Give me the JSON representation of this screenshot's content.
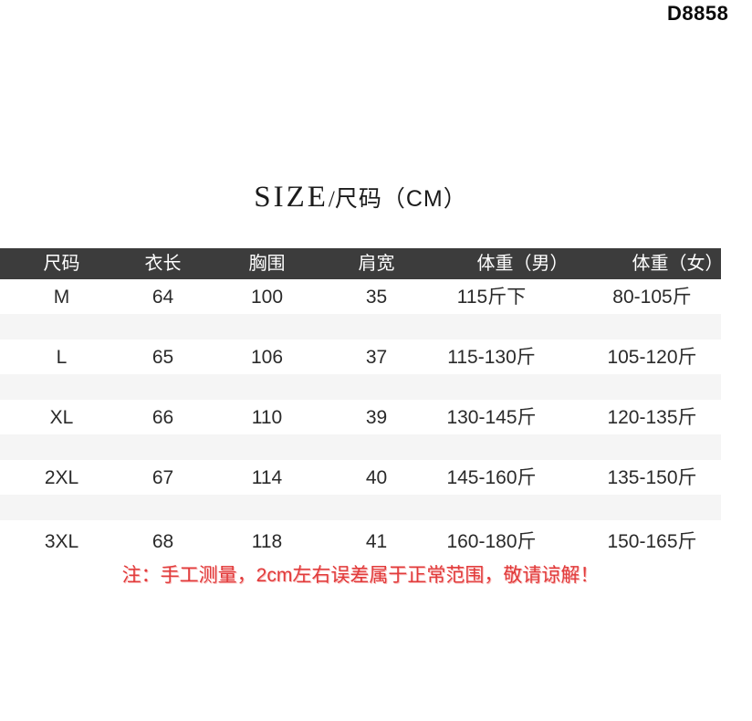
{
  "product_code": "D8858",
  "title": {
    "en": "SIZE",
    "separator": "/",
    "zh": "尺码（CM）"
  },
  "table": {
    "headers": [
      "尺码",
      "衣长",
      "胸围",
      "肩宽",
      "体重（男）",
      "体重（女）"
    ],
    "rows": [
      {
        "size": "M",
        "length": "64",
        "chest": "100",
        "shoulder": "35",
        "weight_male": "115斤下",
        "weight_female": "80-105斤"
      },
      {
        "size": "L",
        "length": "65",
        "chest": "106",
        "shoulder": "37",
        "weight_male": "115-130斤",
        "weight_female": "105-120斤"
      },
      {
        "size": "XL",
        "length": "66",
        "chest": "110",
        "shoulder": "39",
        "weight_male": "130-145斤",
        "weight_female": "120-135斤"
      },
      {
        "size": "2XL",
        "length": "67",
        "chest": "114",
        "shoulder": "40",
        "weight_male": "145-160斤",
        "weight_female": "135-150斤"
      },
      {
        "size": "3XL",
        "length": "68",
        "chest": "118",
        "shoulder": "41",
        "weight_male": "160-180斤",
        "weight_female": "150-165斤"
      }
    ]
  },
  "note": "注：手工测量，2cm左右误差属于正常范围，敬请谅解！",
  "colors": {
    "header_bg": "#3c3c3c",
    "header_text": "#ffffff",
    "stripe_bg": "#f5f5f5",
    "body_text": "#2a2a2a",
    "note_red": "#e13b3b"
  }
}
